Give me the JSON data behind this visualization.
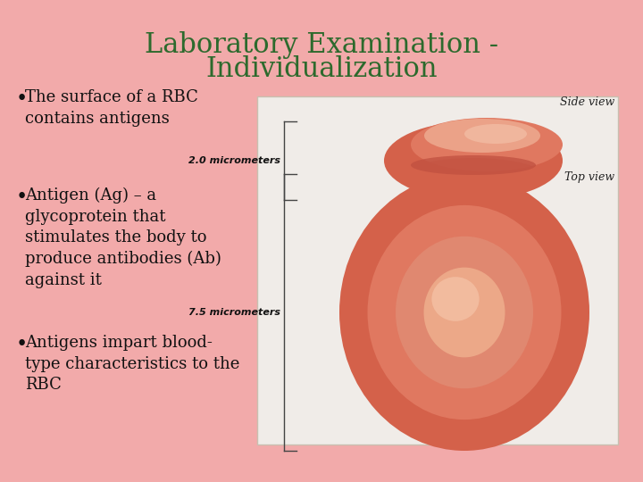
{
  "background_color": "#F2AAAA",
  "title_line1": "Laboratory Examination -",
  "title_line2": "Individualization",
  "title_color": "#2D6A2D",
  "title_fontsize": 22,
  "bullet_color": "#111111",
  "bullet_fontsize": 13,
  "bullets": [
    "The surface of a RBC\ncontains antigens",
    "Antigen (Ag) – a\nglycoprotein that\nstimulates the body to\nproduce antibodies (Ab)\nagainst it",
    "Antigens impart blood-\ntype characteristics to the\nRBC"
  ],
  "image_box_color": "#F0ECE8",
  "image_box_edge": "#C8BFB0",
  "side_view_label": "Side view",
  "top_view_label": "Top view",
  "measure1": "2.0 micrometers",
  "measure2": "7.5 micrometers",
  "label_fontsize": 9,
  "measure_fontsize": 8,
  "rbc_outer_color": "#D4614A",
  "rbc_mid_color": "#E07860",
  "rbc_inner_color": "#EDA080",
  "rbc_center_color": "#F0B898",
  "rbc_side_top_color": "#E8907A",
  "rbc_side_dark": "#C05040",
  "bracket_color": "#444444"
}
